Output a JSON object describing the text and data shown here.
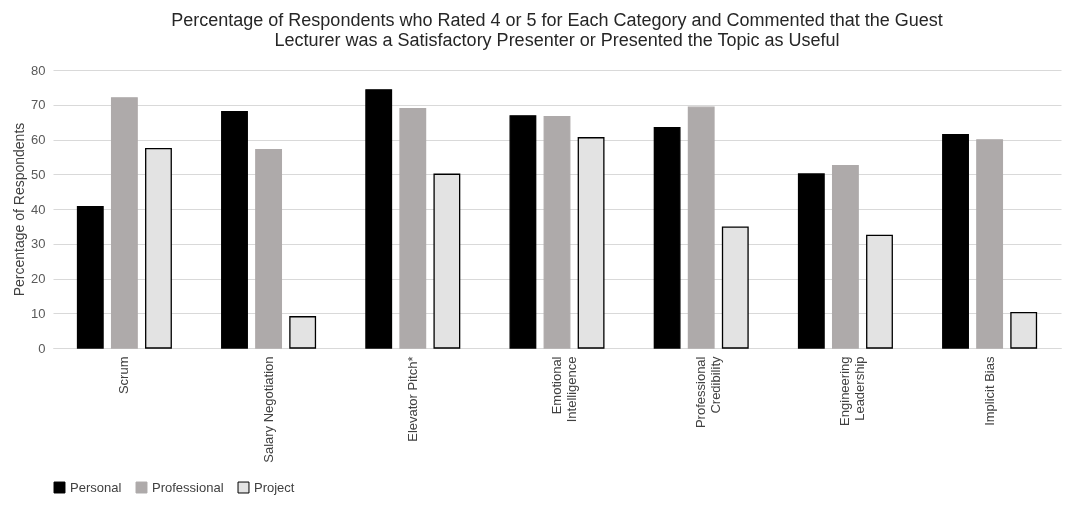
{
  "chart_data": {
    "type": "bar",
    "title": [
      "Percentage of Respondents who Rated 4 or 5 for Each Category and Commented that the Guest",
      "Lecturer was a Satisfactory Presenter or Presented the Topic as Useful"
    ],
    "ylabel": "Percentage of Respondents",
    "categories": [
      "Scrum",
      "Salary Negotiation",
      "Elevator Pitch*",
      "Emotional Intelligence",
      "Professional Credibility",
      "Engineering Leadership",
      "Implicit Bias"
    ],
    "series": [
      {
        "name": "Personal",
        "color": "#000000",
        "values": [
          40.7,
          68.0,
          74.3,
          66.8,
          63.4,
          50.1,
          61.4
        ]
      },
      {
        "name": "Professional",
        "color": "#aeaaaa",
        "values": [
          72.0,
          57.1,
          68.9,
          66.6,
          69.3,
          52.5,
          59.9
        ]
      },
      {
        "name": "Project",
        "color": "#e3e3e3",
        "values": [
          57.4,
          9.0,
          50.0,
          60.5,
          34.8,
          32.4,
          10.2
        ]
      }
    ],
    "ylim": [
      0,
      80
    ],
    "yticks": [
      0,
      10,
      20,
      30,
      40,
      50,
      60,
      70,
      80
    ],
    "grid": "y",
    "legend": "bottom"
  }
}
